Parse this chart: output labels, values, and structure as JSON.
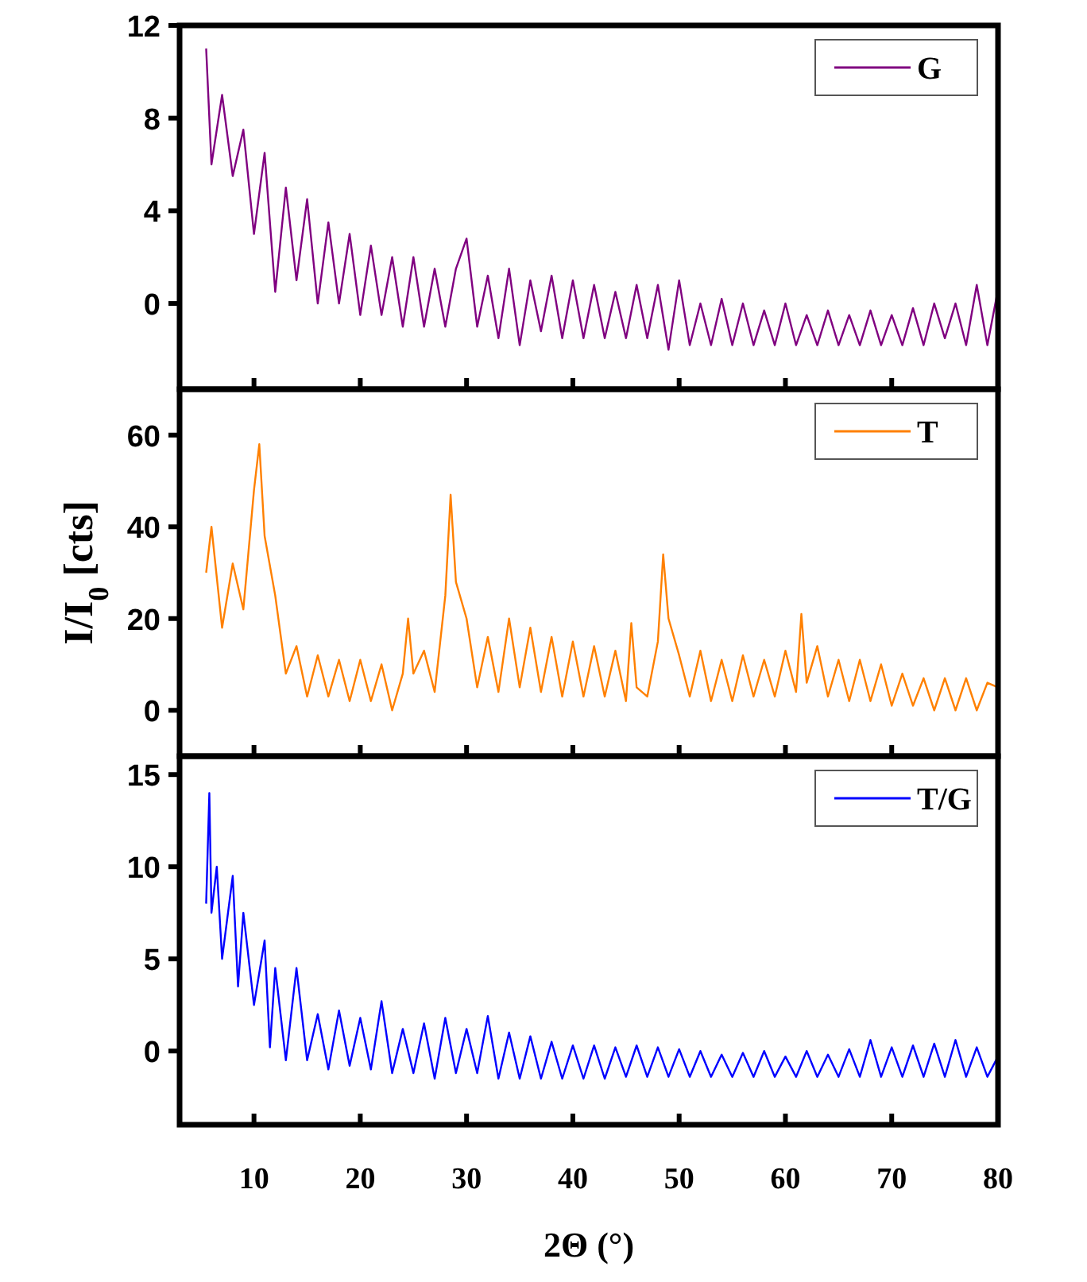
{
  "chart_data": [
    {
      "type": "line",
      "xlim": [
        3,
        80
      ],
      "xticks": [
        10,
        20,
        30,
        40,
        50,
        60,
        70,
        80
      ],
      "ylim": [
        -3.7,
        12
      ],
      "yticks": [
        0,
        4,
        8,
        12
      ],
      "tick_labels": "y",
      "legend": "top right",
      "grid": false,
      "series": [
        {
          "name": "G",
          "color": "#800080",
          "x": [
            5.5,
            6,
            7,
            8,
            9,
            10,
            11,
            12,
            13,
            14,
            15,
            16,
            17,
            18,
            19,
            20,
            21,
            22,
            23,
            24,
            25,
            26,
            27,
            28,
            29,
            30,
            31,
            32,
            33,
            34,
            35,
            36,
            37,
            38,
            39,
            40,
            41,
            42,
            43,
            44,
            45,
            46,
            47,
            48,
            49,
            50,
            51,
            52,
            53,
            54,
            55,
            56,
            57,
            58,
            59,
            60,
            61,
            62,
            63,
            64,
            65,
            66,
            67,
            68,
            69,
            70,
            71,
            72,
            73,
            74,
            75,
            76,
            77,
            78,
            79,
            80
          ],
          "values": [
            11,
            6,
            9,
            5.5,
            7.5,
            3,
            6.5,
            0.5,
            5,
            1,
            4.5,
            0,
            3.5,
            0,
            3,
            -0.5,
            2.5,
            -0.5,
            2,
            -1,
            2,
            -1,
            1.5,
            -1,
            1.5,
            2.8,
            -1,
            1.2,
            -1.5,
            1.5,
            -1.8,
            1,
            -1.2,
            1.2,
            -1.5,
            1,
            -1.5,
            0.8,
            -1.5,
            0.5,
            -1.5,
            0.8,
            -1.5,
            0.8,
            -2,
            1,
            -1.8,
            0,
            -1.8,
            0.2,
            -1.8,
            0,
            -1.8,
            -0.3,
            -1.8,
            0,
            -1.8,
            -0.5,
            -1.8,
            -0.3,
            -1.8,
            -0.5,
            -1.8,
            -0.3,
            -1.8,
            -0.5,
            -1.8,
            -0.2,
            -1.8,
            0,
            -1.5,
            0,
            -1.8,
            0.8,
            -1.8,
            0.6
          ]
        }
      ]
    },
    {
      "type": "line",
      "xlim": [
        3,
        80
      ],
      "xticks": [
        10,
        20,
        30,
        40,
        50,
        60,
        70,
        80
      ],
      "ylim": [
        -10,
        70
      ],
      "yticks": [
        0,
        20,
        40,
        60
      ],
      "tick_labels": "y",
      "legend": "top right",
      "grid": false,
      "ylabel": "I/I$_{0}$ [cts]",
      "series": [
        {
          "name": "T",
          "color": "#ff8000",
          "x": [
            5.5,
            6,
            7,
            8,
            9,
            10,
            10.5,
            11,
            12,
            13,
            14,
            15,
            16,
            17,
            18,
            19,
            20,
            21,
            22,
            23,
            24,
            24.5,
            25,
            26,
            27,
            28,
            28.5,
            29,
            30,
            31,
            32,
            33,
            34,
            35,
            36,
            37,
            38,
            39,
            40,
            41,
            42,
            43,
            44,
            45,
            45.5,
            46,
            47,
            48,
            48.5,
            49,
            50,
            51,
            52,
            53,
            54,
            55,
            56,
            57,
            58,
            59,
            60,
            61,
            61.5,
            62,
            63,
            64,
            65,
            66,
            67,
            68,
            69,
            70,
            71,
            72,
            73,
            74,
            75,
            76,
            77,
            78,
            79,
            80
          ],
          "values": [
            30,
            40,
            18,
            32,
            22,
            48,
            58,
            38,
            25,
            8,
            14,
            3,
            12,
            3,
            11,
            2,
            11,
            2,
            10,
            0,
            8,
            20,
            8,
            13,
            4,
            25,
            47,
            28,
            20,
            5,
            16,
            4,
            20,
            5,
            18,
            4,
            16,
            3,
            15,
            3,
            14,
            3,
            13,
            2,
            19,
            5,
            3,
            15,
            34,
            20,
            12,
            3,
            13,
            2,
            11,
            2,
            12,
            3,
            11,
            3,
            13,
            4,
            21,
            6,
            14,
            3,
            11,
            2,
            11,
            2,
            10,
            1,
            8,
            1,
            7,
            0,
            7,
            0,
            7,
            0,
            6,
            5
          ]
        }
      ]
    },
    {
      "type": "line",
      "xlim": [
        3,
        80
      ],
      "xticks": [
        10,
        20,
        30,
        40,
        50,
        60,
        70,
        80
      ],
      "ylim": [
        -4,
        16
      ],
      "yticks": [
        0,
        5,
        10,
        15
      ],
      "legend": "top right",
      "grid": false,
      "xlabel": "2Θ (°)",
      "series": [
        {
          "name": "T/G",
          "color": "#0000ff",
          "x": [
            5.5,
            5.8,
            6,
            6.5,
            7,
            8,
            8.5,
            9,
            10,
            11,
            11.5,
            12,
            13,
            14,
            15,
            16,
            17,
            18,
            19,
            20,
            21,
            22,
            23,
            24,
            25,
            26,
            27,
            28,
            29,
            30,
            31,
            32,
            33,
            34,
            35,
            36,
            37,
            38,
            39,
            40,
            41,
            42,
            43,
            44,
            45,
            46,
            47,
            48,
            49,
            50,
            51,
            52,
            53,
            54,
            55,
            56,
            57,
            58,
            59,
            60,
            61,
            62,
            63,
            64,
            65,
            66,
            67,
            68,
            69,
            70,
            71,
            72,
            73,
            74,
            75,
            76,
            77,
            78,
            79,
            80
          ],
          "values": [
            8,
            14,
            7.5,
            10,
            5,
            9.5,
            3.5,
            7.5,
            2.5,
            6,
            0.2,
            4.5,
            -0.5,
            4.5,
            -0.5,
            2,
            -1,
            2.2,
            -0.8,
            1.8,
            -1,
            2.7,
            -1.2,
            1.2,
            -1.2,
            1.5,
            -1.5,
            1.8,
            -1.2,
            1.2,
            -1.2,
            1.9,
            -1.5,
            1,
            -1.5,
            0.8,
            -1.5,
            0.5,
            -1.5,
            0.3,
            -1.5,
            0.3,
            -1.5,
            0.2,
            -1.4,
            0.3,
            -1.4,
            0.2,
            -1.4,
            0.1,
            -1.4,
            0,
            -1.4,
            -0.2,
            -1.4,
            -0.1,
            -1.4,
            0,
            -1.4,
            -0.3,
            -1.4,
            0,
            -1.4,
            -0.2,
            -1.4,
            0.1,
            -1.4,
            0.6,
            -1.4,
            0.2,
            -1.4,
            0.3,
            -1.4,
            0.4,
            -1.4,
            0.6,
            -1.4,
            0.2,
            -1.4,
            -0.3
          ]
        }
      ]
    }
  ]
}
